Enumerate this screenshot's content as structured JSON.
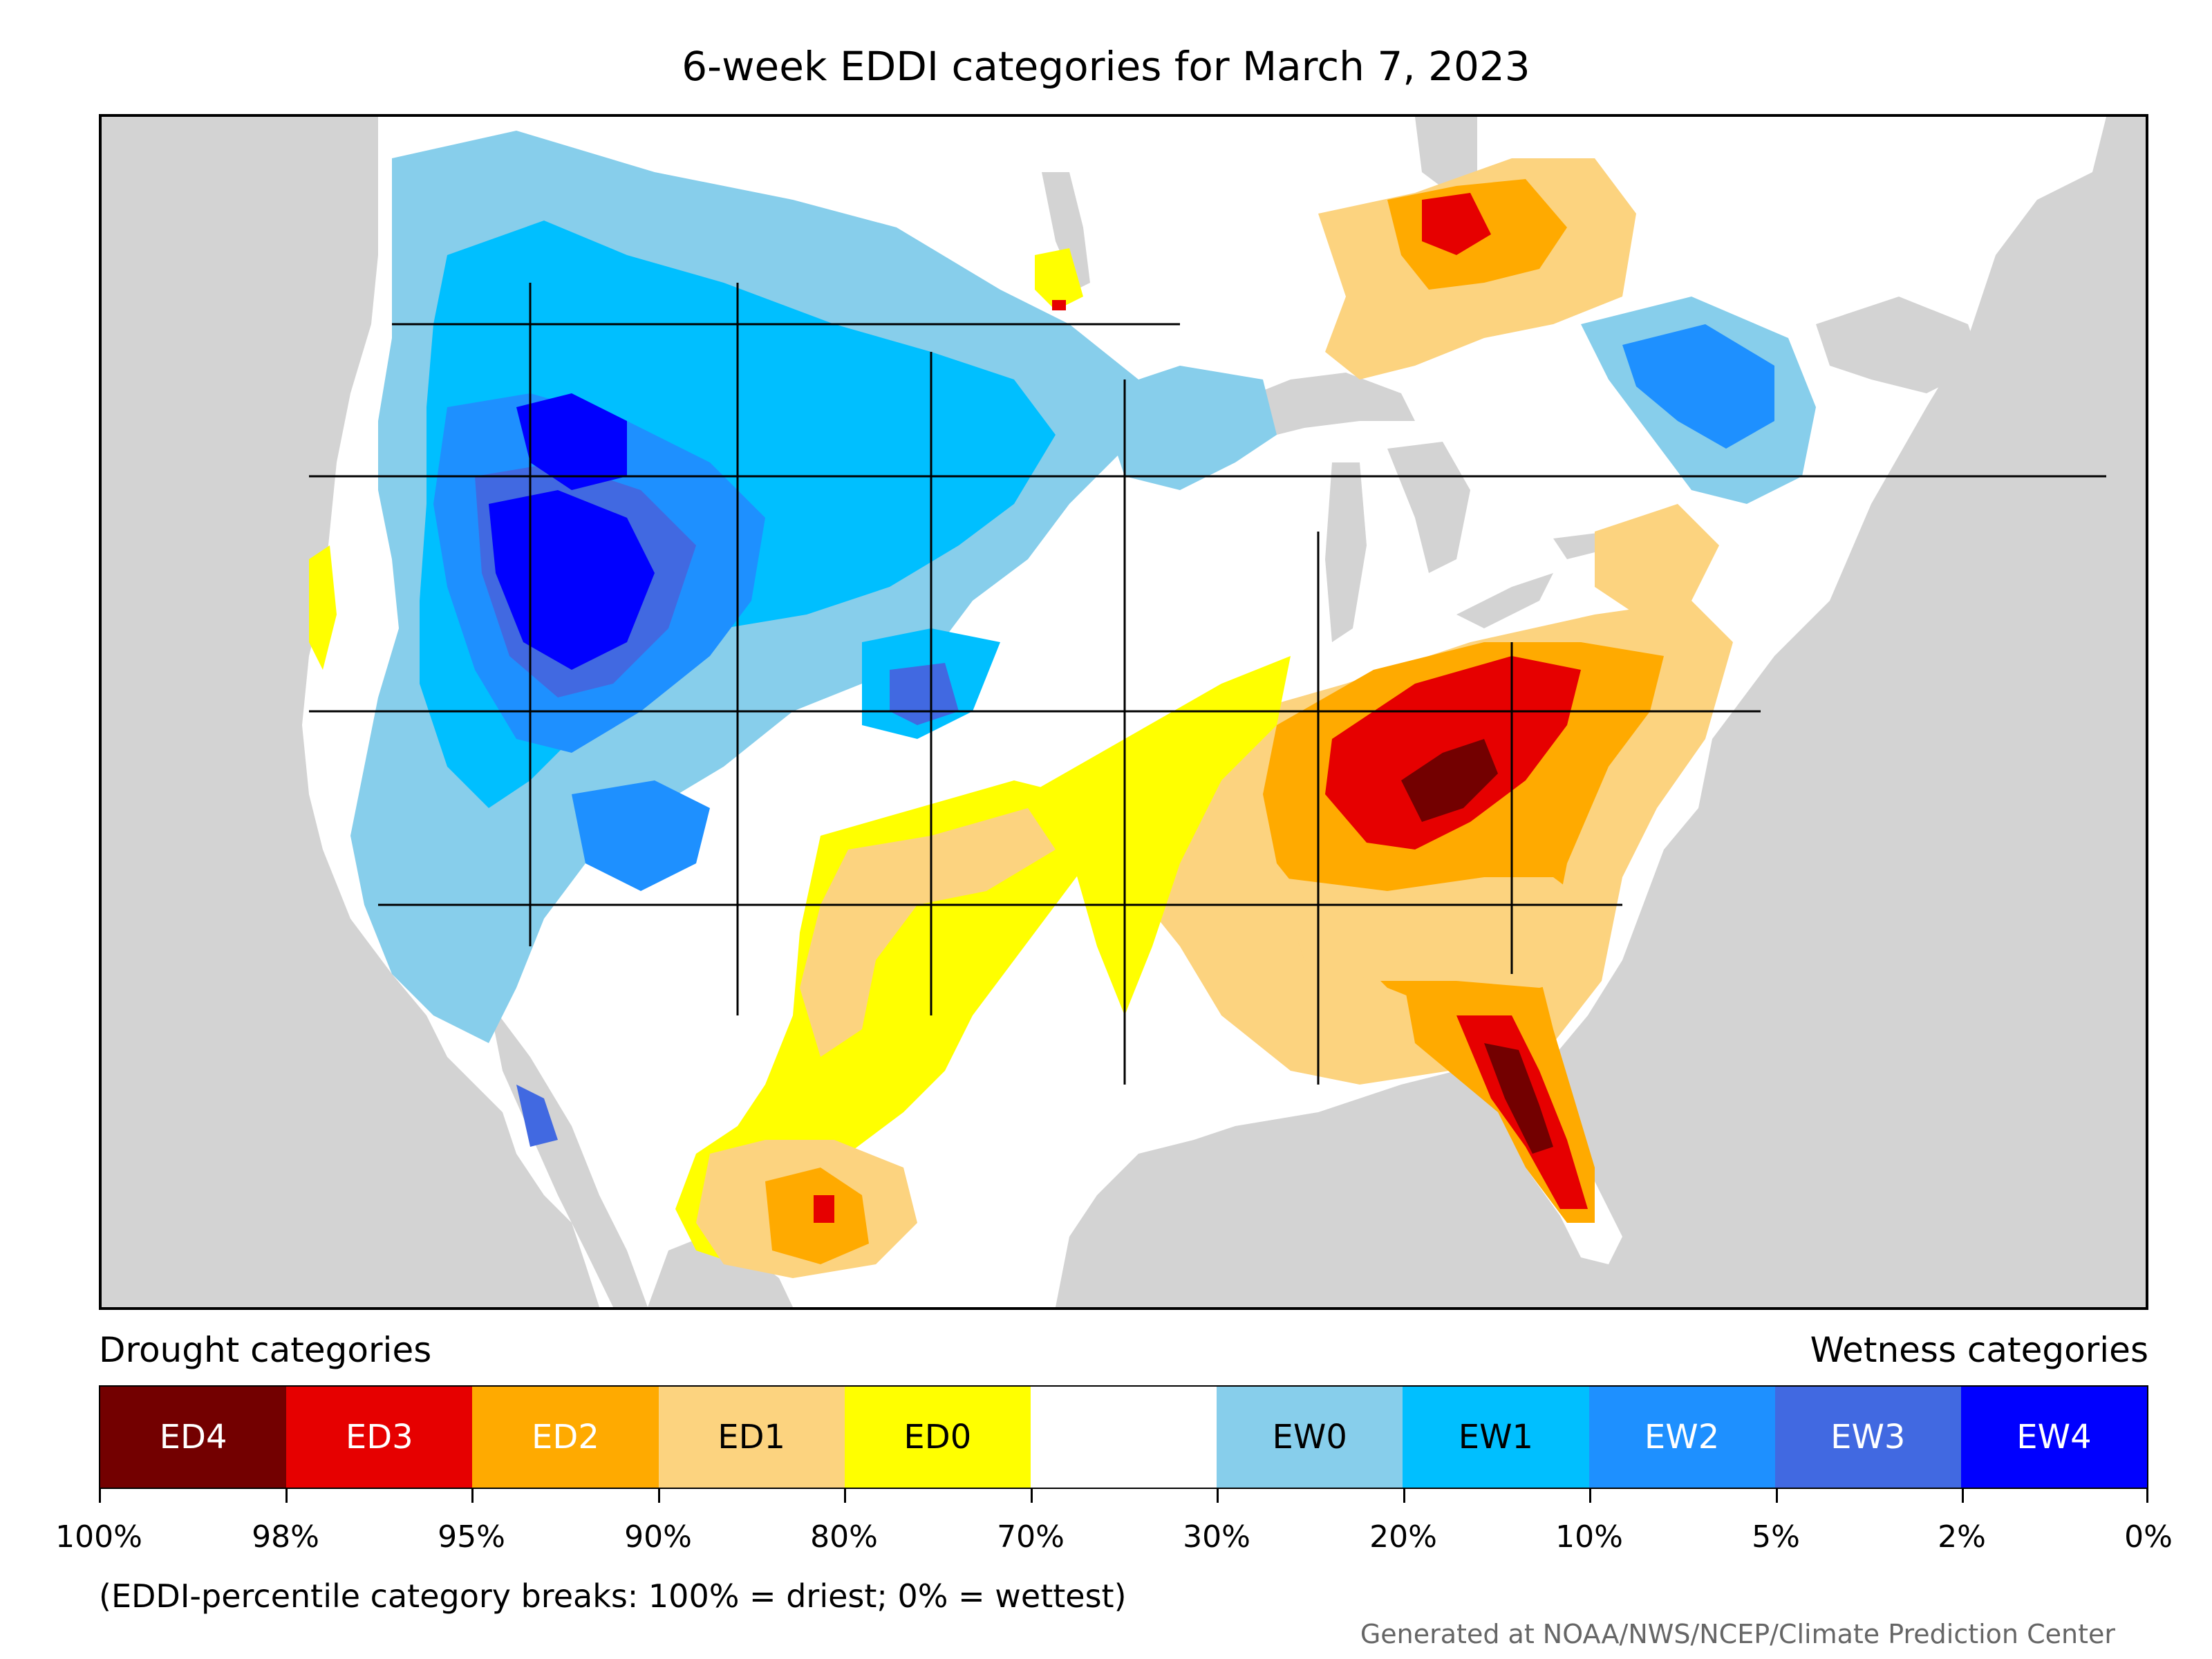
{
  "title": "6-week EDDI categories for March 7, 2023",
  "legend": {
    "drought_heading": "Drought categories",
    "wetness_heading": "Wetness categories",
    "categories": [
      {
        "label": "ED4",
        "color": "#730000",
        "text_color": "#ffffff"
      },
      {
        "label": "ED3",
        "color": "#e60000",
        "text_color": "#ffffff"
      },
      {
        "label": "ED2",
        "color": "#ffaa00",
        "text_color": "#ffffff"
      },
      {
        "label": "ED1",
        "color": "#fcd37f",
        "text_color": "#000000"
      },
      {
        "label": "ED0",
        "color": "#ffff00",
        "text_color": "#000000"
      },
      {
        "label": "",
        "color": "#ffffff",
        "text_color": "#000000"
      },
      {
        "label": "EW0",
        "color": "#87ceeb",
        "text_color": "#000000"
      },
      {
        "label": "EW1",
        "color": "#00bfff",
        "text_color": "#000000"
      },
      {
        "label": "EW2",
        "color": "#1e90ff",
        "text_color": "#ffffff"
      },
      {
        "label": "EW3",
        "color": "#4169e1",
        "text_color": "#ffffff"
      },
      {
        "label": "EW4",
        "color": "#0000ff",
        "text_color": "#ffffff"
      }
    ],
    "tick_labels": [
      "100%",
      "98%",
      "95%",
      "90%",
      "80%",
      "70%",
      "30%",
      "20%",
      "10%",
      "5%",
      "2%",
      "0%"
    ],
    "note": "(EDDI-percentile category breaks: 100% = driest; 0% = wettest)"
  },
  "credit": "Generated at NOAA/NWS/NCEP/Climate Prediction Center",
  "map": {
    "ocean_land_outside_color": "#d3d3d3",
    "background_color": "#ffffff",
    "border_color": "#000000"
  }
}
